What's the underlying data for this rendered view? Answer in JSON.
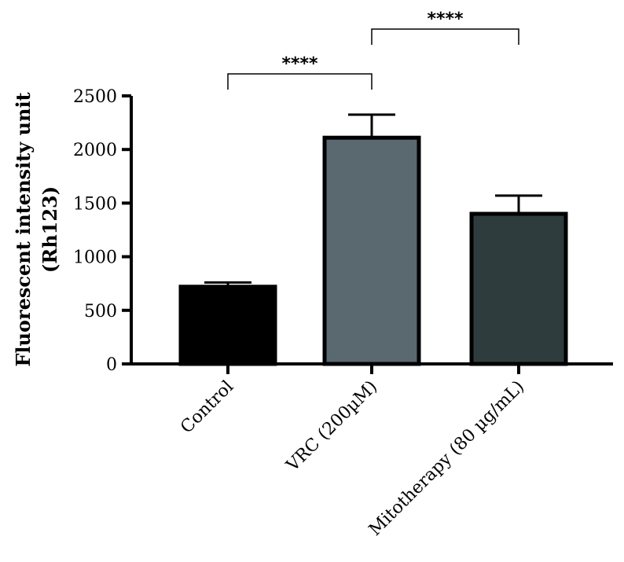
{
  "chart_data": {
    "type": "bar",
    "categories": [
      "Control",
      "VRC (200µM)",
      "Mitotherapy (80 µg/mL)"
    ],
    "values": [
      720,
      2110,
      1400
    ],
    "errors": [
      40,
      215,
      170
    ],
    "ylabel_lines": [
      "Fluorescent intensity unit",
      "(Rh123)"
    ],
    "ylim": [
      0,
      2500
    ],
    "yticks": [
      0,
      500,
      1000,
      1500,
      2000,
      2500
    ],
    "bar_colors": [
      "#000000",
      "#5a6870",
      "#2e3c3d"
    ],
    "significance": [
      {
        "from": 0,
        "to": 1,
        "label": "****"
      },
      {
        "from": 1,
        "to": 2,
        "label": "****"
      }
    ]
  }
}
